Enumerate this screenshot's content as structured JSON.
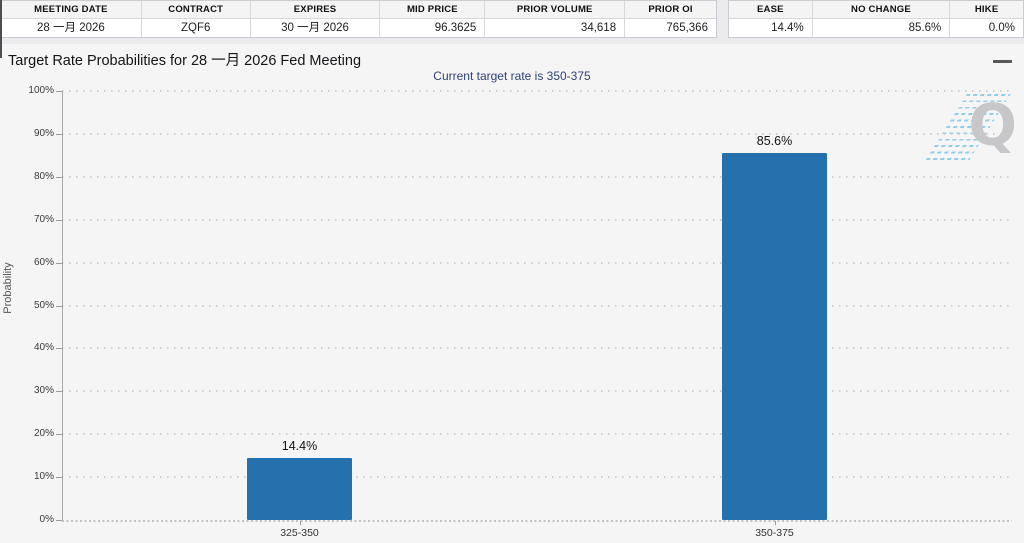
{
  "header_tables": {
    "market": {
      "columns": [
        {
          "label": "MEETING DATE",
          "value": "28 一月 2026"
        },
        {
          "label": "CONTRACT",
          "value": "ZQF6"
        },
        {
          "label": "EXPIRES",
          "value": "30 一月 2026"
        },
        {
          "label": "MID PRICE",
          "value": "96.3625"
        },
        {
          "label": "PRIOR VOLUME",
          "value": "34,618"
        },
        {
          "label": "PRIOR OI",
          "value": "765,366"
        }
      ]
    },
    "rates": {
      "columns": [
        {
          "label": "EASE",
          "value": "14.4%"
        },
        {
          "label": "NO CHANGE",
          "value": "85.6%"
        },
        {
          "label": "HIKE",
          "value": "0.0%"
        }
      ]
    }
  },
  "chart_data": {
    "type": "bar",
    "title": "Target Rate Probabilities for 28 一月 2026 Fed Meeting",
    "subtitle": "Current target rate is 350-375",
    "categories": [
      "325-350",
      "350-375"
    ],
    "values": [
      14.4,
      85.6
    ],
    "value_labels": [
      "14.4%",
      "85.6%"
    ],
    "ylabel": "Probability",
    "ylim": [
      0,
      100
    ],
    "yticks": [
      0,
      10,
      20,
      30,
      40,
      50,
      60,
      70,
      80,
      90,
      100
    ],
    "ytick_labels": [
      "0%",
      "10%",
      "20%",
      "30%",
      "40%",
      "50%",
      "60%",
      "70%",
      "80%",
      "90%",
      "100%"
    ],
    "grid": "horizontal-dotted",
    "legend": "none",
    "bar_color": "#2471ae"
  },
  "icons": {
    "watermark_letter": "Q"
  },
  "colors": {
    "bar": "#2471ae",
    "subtitle_text": "#2d4373",
    "panel_bg": "#f5f5f6",
    "grid": "#cfcfd1"
  }
}
